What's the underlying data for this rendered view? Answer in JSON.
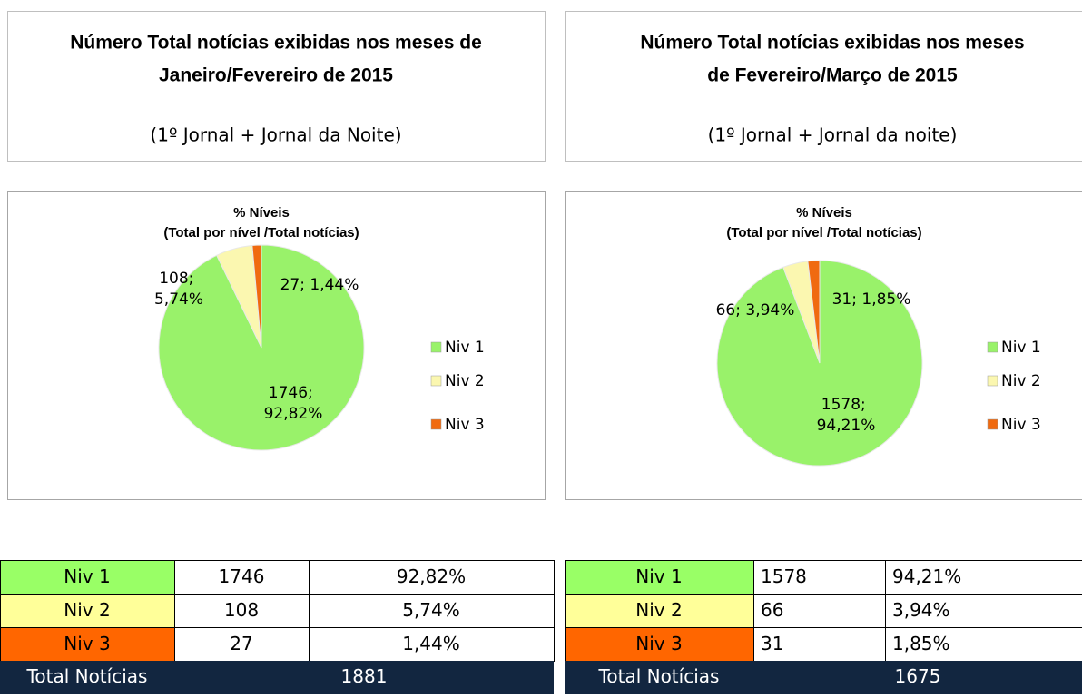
{
  "headers": [
    {
      "title": [
        "Número Total notícias exibidas nos meses de",
        "Janeiro/Fevereiro de 2015"
      ],
      "subtitle": "(1º Jornal + Jornal da Noite)"
    },
    {
      "title": [
        "Número Total notícias exibidas nos meses",
        "de Fevereiro/Março de 2015"
      ],
      "subtitle": "(1º Jornal + Jornal da noite)"
    }
  ],
  "chart_data": [
    {
      "type": "pie",
      "title": [
        "% Níveis",
        "(Total  por nível /Total notícias)"
      ],
      "categories": [
        "Niv 1",
        "Niv 2",
        "Niv 3"
      ],
      "values": [
        1746,
        108,
        27
      ],
      "value_labels": [
        "1746; 92,82%",
        "108; 5,74%",
        "27; 1,44%"
      ],
      "colors": [
        "#99f26a",
        "#fbf7b0",
        "#f06a10"
      ],
      "legend": "right"
    },
    {
      "type": "pie",
      "title": [
        "% Níveis",
        "(Total  por nível /Total notícias)"
      ],
      "categories": [
        "Niv 1",
        "Niv 2",
        "Niv 3"
      ],
      "values": [
        1578,
        66,
        31
      ],
      "value_labels": [
        "1578; 94,21%",
        "66; 3,94%",
        "31; 1,85%"
      ],
      "colors": [
        "#99f26a",
        "#fbf7b0",
        "#f06a10"
      ],
      "legend": "right"
    }
  ],
  "tables": [
    {
      "rows": [
        [
          "Niv 1",
          "1746",
          "92,82%"
        ],
        [
          "Niv 2",
          "108",
          "5,74%"
        ],
        [
          "Niv 3",
          "27",
          "1,44%"
        ]
      ],
      "total": [
        "Total Notícias",
        "1881"
      ],
      "colors": [
        "#99ff66",
        "#ffff99",
        "#ff6600"
      ]
    },
    {
      "rows": [
        [
          "Niv 1",
          "1578",
          "94,21%"
        ],
        [
          "Niv 2",
          "66",
          "3,94%"
        ],
        [
          "Niv 3",
          "31",
          "1,85%"
        ]
      ],
      "total": [
        "Total Notícias",
        "1675"
      ],
      "colors": [
        "#99ff66",
        "#ffff99",
        "#ff6600"
      ]
    }
  ]
}
